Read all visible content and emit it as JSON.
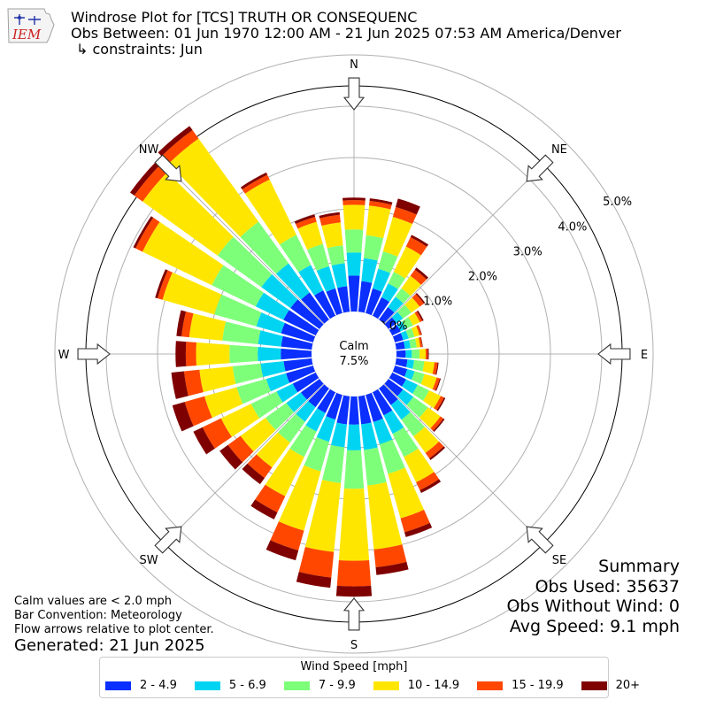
{
  "header": {
    "title": "Windrose Plot for [TCS] TRUTH OR CONSEQUENC",
    "obs_between": "Obs Between: 01 Jun 1970 12:00 AM - 21 Jun 2025 07:53 AM America/Denver",
    "constraints": "↳ constraints: Jun",
    "logo_text": "IEM"
  },
  "notes": {
    "calm_values": "Calm values are < 2.0 mph",
    "bar_convention": "Bar Convention: Meteorology",
    "flow_arrows": "Flow arrows relative to plot center.",
    "generated": "Generated: 21 Jun 2025"
  },
  "summary": {
    "heading": "Summary",
    "obs_used": "Obs Used: 35637",
    "obs_without_wind": "Obs Without Wind: 0",
    "avg_speed": "Avg Speed: 9.1 mph"
  },
  "chart_data": {
    "type": "windrose",
    "calm": {
      "label": "Calm",
      "value_text": "7.5%"
    },
    "direction_labels": [
      "N",
      "NE",
      "E",
      "SE",
      "S",
      "SW",
      "W",
      "NW"
    ],
    "radial_ticks": [
      "0.0%",
      "1.0%",
      "2.0%",
      "3.0%",
      "4.0%",
      "5.0%"
    ],
    "legend_title": "Wind Speed [mph]",
    "legend": [
      {
        "label": "2 - 4.9",
        "color": "#0a2fff"
      },
      {
        "label": "5 - 6.9",
        "color": "#00d4f2"
      },
      {
        "label": "7 - 9.9",
        "color": "#7dff7a"
      },
      {
        "label": "10 - 14.9",
        "color": "#ffe600"
      },
      {
        "label": "15 - 19.9",
        "color": "#ff4700"
      },
      {
        "label": "20+",
        "color": "#7f0000"
      }
    ],
    "units": "percent of observations",
    "directions_deg": [
      0,
      10,
      20,
      30,
      40,
      50,
      60,
      70,
      80,
      90,
      100,
      110,
      120,
      130,
      140,
      150,
      160,
      170,
      180,
      190,
      200,
      210,
      220,
      230,
      240,
      250,
      260,
      270,
      280,
      290,
      300,
      310,
      320,
      330,
      340,
      350
    ],
    "cumulative": [
      [
        0.7,
        1.15,
        1.6,
        2.08,
        2.17,
        2.22
      ],
      [
        0.6,
        1.05,
        1.5,
        2.08,
        2.17,
        2.22
      ],
      [
        0.5,
        0.9,
        1.25,
        1.95,
        2.15,
        2.32
      ],
      [
        0.4,
        0.7,
        0.95,
        1.5,
        1.7,
        1.75
      ],
      [
        0.3,
        0.55,
        0.75,
        1.05,
        1.2,
        1.25
      ],
      [
        0.2,
        0.35,
        0.55,
        0.75,
        0.85,
        0.88
      ],
      [
        0.18,
        0.3,
        0.45,
        0.6,
        0.65,
        0.68
      ],
      [
        0.17,
        0.28,
        0.4,
        0.5,
        0.54,
        0.55
      ],
      [
        0.17,
        0.28,
        0.4,
        0.47,
        0.51,
        0.52
      ],
      [
        0.18,
        0.3,
        0.45,
        0.57,
        0.61,
        0.63
      ],
      [
        0.22,
        0.35,
        0.55,
        0.75,
        0.81,
        0.83
      ],
      [
        0.25,
        0.4,
        0.6,
        0.85,
        0.91,
        0.93
      ],
      [
        0.3,
        0.55,
        0.8,
        1.05,
        1.12,
        1.15
      ],
      [
        0.35,
        0.6,
        0.95,
        1.25,
        1.32,
        1.35
      ],
      [
        0.4,
        0.75,
        1.15,
        1.55,
        1.68,
        1.72
      ],
      [
        0.5,
        0.9,
        1.4,
        1.95,
        2.12,
        2.18
      ],
      [
        0.55,
        1.0,
        1.6,
        2.5,
        2.78,
        2.88
      ],
      [
        0.55,
        1.05,
        1.75,
        3.0,
        3.35,
        3.5
      ],
      [
        0.55,
        1.05,
        1.8,
        3.2,
        3.7,
        3.9
      ],
      [
        0.55,
        1.0,
        1.7,
        3.05,
        3.55,
        3.75
      ],
      [
        0.5,
        0.95,
        1.55,
        2.75,
        3.15,
        3.35
      ],
      [
        0.45,
        0.85,
        1.4,
        2.25,
        2.6,
        2.75
      ],
      [
        0.45,
        0.8,
        1.3,
        1.9,
        2.15,
        2.3
      ],
      [
        0.45,
        0.8,
        1.3,
        1.9,
        2.2,
        2.4
      ],
      [
        0.5,
        0.85,
        1.4,
        2.05,
        2.45,
        2.65
      ],
      [
        0.55,
        0.95,
        1.55,
        2.2,
        2.6,
        2.85
      ],
      [
        0.55,
        1.0,
        1.55,
        2.2,
        2.5,
        2.75
      ],
      [
        0.6,
        1.05,
        1.6,
        2.25,
        2.45,
        2.65
      ],
      [
        0.6,
        1.05,
        1.75,
        2.4,
        2.55,
        2.65
      ],
      [
        0.65,
        1.15,
        2.0,
        3.05,
        3.15,
        3.2
      ],
      [
        0.7,
        1.3,
        2.25,
        3.75,
        3.9,
        3.95
      ],
      [
        0.7,
        1.4,
        2.45,
        4.25,
        4.45,
        4.55
      ],
      [
        0.65,
        1.35,
        2.35,
        4.35,
        4.55,
        4.65
      ],
      [
        0.55,
        1.1,
        1.75,
        2.95,
        3.05,
        3.1
      ],
      [
        0.5,
        0.95,
        1.4,
        1.85,
        1.95,
        2.0
      ],
      [
        0.5,
        0.95,
        1.3,
        1.75,
        1.9,
        1.95
      ]
    ]
  }
}
